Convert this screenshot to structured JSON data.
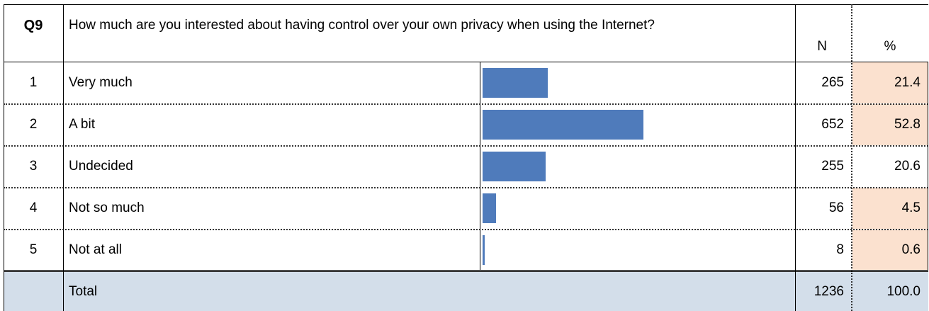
{
  "header": {
    "question_id": "Q9",
    "question_text": "How much are you interested about having control over your own privacy when using the Internet?",
    "n_label": "N",
    "pct_label": "%"
  },
  "colors": {
    "bar": "#4f7bbb",
    "pct_highlight": "#fbe1cf",
    "total_row": "#d3deea"
  },
  "chart_data": {
    "type": "bar",
    "orientation": "horizontal",
    "categories": [
      "Very much",
      "A bit",
      "Undecided",
      "Not so much",
      "Not at all"
    ],
    "values": [
      21.4,
      52.8,
      20.6,
      4.5,
      0.6
    ]
  },
  "rows": [
    {
      "index": "1",
      "label": "Very much",
      "n": "265",
      "pct": "21.4",
      "highlight": true
    },
    {
      "index": "2",
      "label": "A bit",
      "n": "652",
      "pct": "52.8",
      "highlight": true
    },
    {
      "index": "3",
      "label": "Undecided",
      "n": "255",
      "pct": "20.6",
      "highlight": false
    },
    {
      "index": "4",
      "label": "Not so much",
      "n": "56",
      "pct": "4.5",
      "highlight": true
    },
    {
      "index": "5",
      "label": "Not at all",
      "n": "8",
      "pct": "0.6",
      "highlight": true
    }
  ],
  "total": {
    "label": "Total",
    "n": "1236",
    "pct": "100.0"
  }
}
